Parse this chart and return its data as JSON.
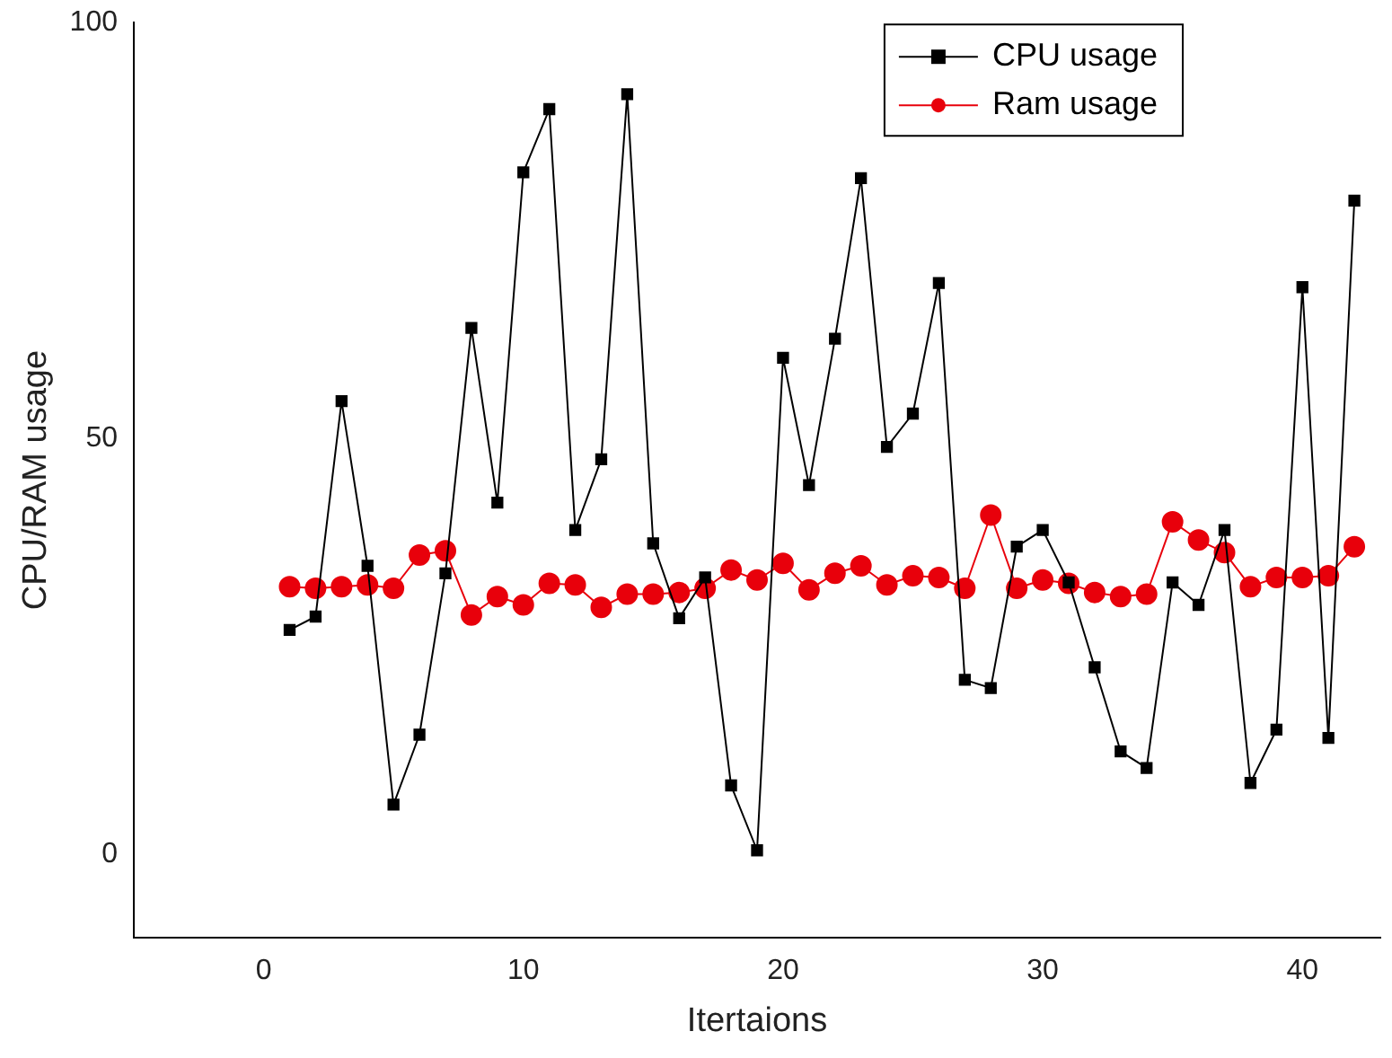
{
  "chart_data": {
    "type": "line",
    "xlabel": "Itertaions",
    "ylabel": "CPU/RAM usage",
    "x": [
      1,
      2,
      3,
      4,
      5,
      6,
      7,
      8,
      9,
      10,
      11,
      12,
      13,
      14,
      15,
      16,
      17,
      18,
      19,
      20,
      21,
      22,
      23,
      24,
      25,
      26,
      27,
      28,
      29,
      30,
      31,
      32,
      33,
      34,
      35,
      36,
      37,
      38,
      39,
      40,
      41,
      42
    ],
    "series": [
      {
        "name": "CPU usage",
        "color": "#000000",
        "marker": "square",
        "values": [
          27,
          28.6,
          54.5,
          34.7,
          6,
          14.4,
          33.8,
          63.3,
          42.3,
          82,
          89.6,
          39,
          47.5,
          91.4,
          37.4,
          28.4,
          33.3,
          8.3,
          0.5,
          59.7,
          44.4,
          62,
          81.3,
          49,
          53,
          68.7,
          21,
          20,
          37,
          39,
          32.7,
          22.5,
          12.4,
          10.4,
          32.7,
          30,
          39,
          8.6,
          15,
          68.2,
          14,
          78.6
        ]
      },
      {
        "name": "Ram usage",
        "color": "#e8000b",
        "marker": "circle",
        "values": [
          32.2,
          32,
          32.2,
          32.4,
          32,
          36,
          36.5,
          28.8,
          31,
          30,
          32.6,
          32.4,
          29.7,
          31.3,
          31.3,
          31.5,
          32,
          34.2,
          33,
          35,
          31.8,
          33.8,
          34.7,
          32.4,
          33.5,
          33.3,
          32,
          40.8,
          32,
          33,
          32.6,
          31.5,
          31,
          31.3,
          40,
          37.8,
          36.3,
          32.2,
          33.3,
          33.3,
          33.5,
          37
        ]
      }
    ],
    "xlim": [
      -5,
      43
    ],
    "ylim": [
      -10,
      100
    ],
    "xticks": [
      0,
      10,
      20,
      30,
      40
    ],
    "yticks": [
      0,
      50,
      100
    ],
    "grid": false,
    "legend": "top right"
  }
}
